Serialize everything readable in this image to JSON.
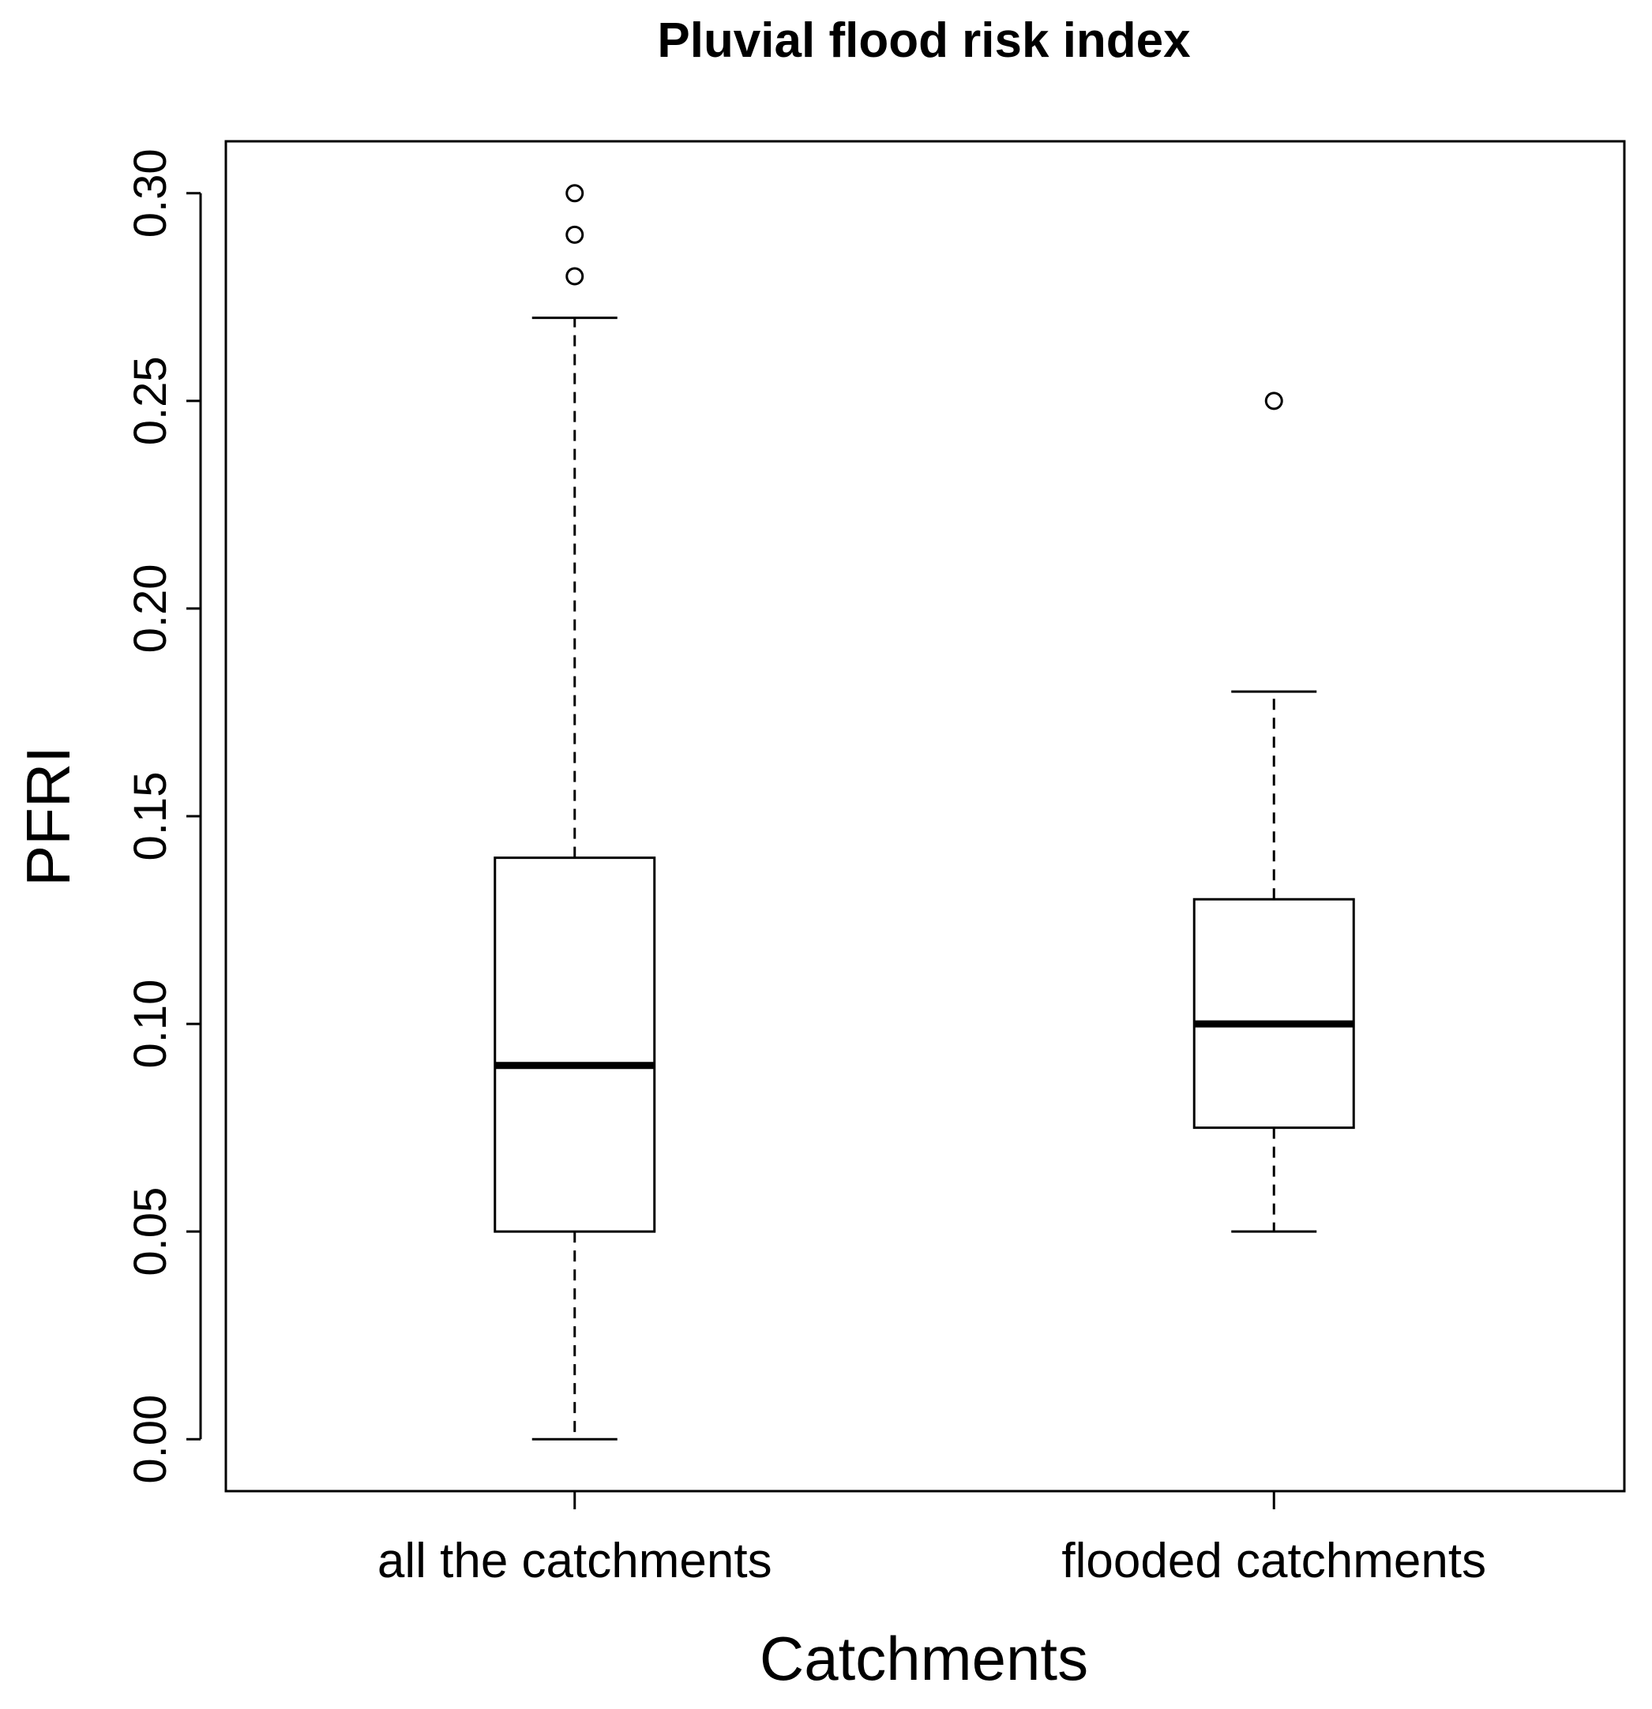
{
  "chart_data": {
    "type": "boxplot",
    "title": "Pluvial flood risk index",
    "xlabel": "Catchments",
    "ylabel": "PFRI",
    "ylim": [
      -0.0125,
      0.3125
    ],
    "yticks": [
      0.0,
      0.05,
      0.1,
      0.15,
      0.2,
      0.25,
      0.3
    ],
    "ytick_labels": [
      "0.00",
      "0.05",
      "0.10",
      "0.15",
      "0.20",
      "0.25",
      "0.30"
    ],
    "categories": [
      "all the catchments",
      "flooded catchments"
    ],
    "boxes": [
      {
        "name": "all the catchments",
        "whisker_low": 0.0,
        "q1": 0.05,
        "median": 0.09,
        "q3": 0.14,
        "whisker_high": 0.27,
        "outliers": [
          0.28,
          0.29,
          0.3
        ]
      },
      {
        "name": "flooded catchments",
        "whisker_low": 0.05,
        "q1": 0.075,
        "median": 0.1,
        "q3": 0.13,
        "whisker_high": 0.18,
        "outliers": [
          0.25
        ]
      }
    ],
    "colors": {
      "stroke": "#000000",
      "box_fill": "#ffffff",
      "background": "#ffffff"
    }
  }
}
